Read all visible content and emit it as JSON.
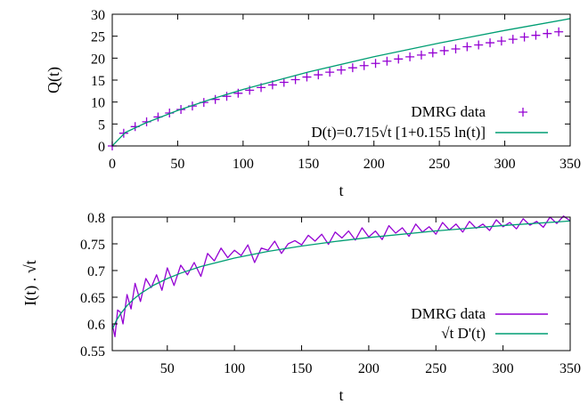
{
  "chart_data": [
    {
      "type": "scatter+line",
      "xlabel": "t",
      "ylabel": "Q(t)",
      "xlim": [
        0,
        350
      ],
      "ylim": [
        0,
        30
      ],
      "xticks": [
        0,
        50,
        100,
        150,
        200,
        250,
        300,
        350
      ],
      "yticks": [
        0,
        5,
        10,
        15,
        20,
        25,
        30
      ],
      "legend_position": "bottom-right",
      "series": [
        {
          "name": "DMRG data",
          "kind": "points",
          "marker": "plus",
          "color": "#9400d3",
          "x": [
            0,
            8.75,
            17.5,
            26.25,
            35,
            43.75,
            52.5,
            61.25,
            70,
            78.75,
            87.5,
            96.25,
            105,
            113.75,
            122.5,
            131.25,
            140,
            148.75,
            157.5,
            166.25,
            175,
            183.75,
            192.5,
            201.25,
            210,
            218.75,
            227.5,
            236.25,
            245,
            253.75,
            262.5,
            271.25,
            280,
            288.75,
            297.5,
            306.25,
            315,
            323.75,
            332.5,
            341.25
          ],
          "y": [
            0,
            2.9,
            4.4,
            5.5,
            6.6,
            7.5,
            8.3,
            9.1,
            9.9,
            10.6,
            11.3,
            12.0,
            12.7,
            13.3,
            13.9,
            14.5,
            15.1,
            15.7,
            16.2,
            16.8,
            17.3,
            17.8,
            18.3,
            18.8,
            19.3,
            19.8,
            20.3,
            20.7,
            21.2,
            21.7,
            22.1,
            22.6,
            23.0,
            23.5,
            23.9,
            24.3,
            24.8,
            25.2,
            25.6,
            26.0
          ]
        },
        {
          "name": "D(t)=0.715√t [1+0.155 ln(t)]",
          "kind": "line",
          "color": "#009e73",
          "function": "0.715*sqrt(t)*(1+0.155*ln(t))",
          "x": [
            0,
            10,
            25,
            50,
            75,
            100,
            150,
            200,
            250,
            300,
            350
          ],
          "y": [
            0,
            3.07,
            5.17,
            8.08,
            10.6,
            12.87,
            16.84,
            20.31,
            23.44,
            26.31,
            29.0
          ]
        }
      ]
    },
    {
      "type": "line",
      "xlabel": "t",
      "ylabel": "I(t) . √t",
      "xlim": [
        9,
        350
      ],
      "ylim": [
        0.55,
        0.8
      ],
      "xticks": [
        50,
        100,
        150,
        200,
        250,
        300,
        350
      ],
      "yticks": [
        0.55,
        0.6,
        0.65,
        0.7,
        0.75,
        0.8
      ],
      "ytick_labels": [
        "0.55",
        "0.6",
        "0.65",
        "0.7",
        "0.75",
        "0.8"
      ],
      "legend_position": "bottom-right",
      "series": [
        {
          "name": "DMRG data",
          "kind": "line",
          "color": "#9400d3",
          "x": [
            9,
            11,
            13,
            15,
            17,
            20,
            23,
            26,
            30,
            34,
            38,
            42,
            46,
            50,
            55,
            60,
            65,
            70,
            75,
            80,
            85,
            90,
            95,
            100,
            105,
            110,
            115,
            120,
            125,
            130,
            135,
            140,
            145,
            150,
            155,
            160,
            165,
            170,
            175,
            180,
            185,
            190,
            195,
            200,
            205,
            210,
            215,
            220,
            225,
            230,
            235,
            240,
            245,
            250,
            255,
            260,
            265,
            270,
            275,
            280,
            285,
            290,
            295,
            300,
            305,
            310,
            315,
            320,
            325,
            330,
            335,
            340,
            345,
            350
          ],
          "y": [
            0.6,
            0.576,
            0.626,
            0.622,
            0.6,
            0.655,
            0.628,
            0.676,
            0.642,
            0.685,
            0.668,
            0.692,
            0.663,
            0.705,
            0.672,
            0.71,
            0.692,
            0.715,
            0.689,
            0.732,
            0.718,
            0.742,
            0.724,
            0.738,
            0.728,
            0.748,
            0.715,
            0.742,
            0.738,
            0.755,
            0.732,
            0.75,
            0.756,
            0.748,
            0.766,
            0.755,
            0.768,
            0.749,
            0.772,
            0.761,
            0.774,
            0.757,
            0.78,
            0.763,
            0.774,
            0.758,
            0.784,
            0.77,
            0.78,
            0.764,
            0.787,
            0.772,
            0.782,
            0.768,
            0.79,
            0.776,
            0.787,
            0.772,
            0.792,
            0.779,
            0.787,
            0.775,
            0.795,
            0.782,
            0.79,
            0.778,
            0.797,
            0.785,
            0.792,
            0.781,
            0.8,
            0.788,
            0.802,
            0.793
          ]
        },
        {
          "name": "√t D'(t)",
          "kind": "line",
          "color": "#009e73",
          "function": "0.3575*(1+0.155*ln(t)) + 0.110825",
          "x": [
            9,
            12,
            15,
            20,
            25,
            30,
            40,
            50,
            60,
            75,
            100,
            125,
            150,
            175,
            200,
            250,
            300,
            350
          ],
          "y": [
            0.59,
            0.606,
            0.6183,
            0.6343,
            0.6466,
            0.6567,
            0.6727,
            0.685,
            0.6951,
            0.7075,
            0.7234,
            0.7358,
            0.7459,
            0.7544,
            0.7618,
            0.7742,
            0.7843,
            0.7928
          ]
        }
      ]
    }
  ]
}
